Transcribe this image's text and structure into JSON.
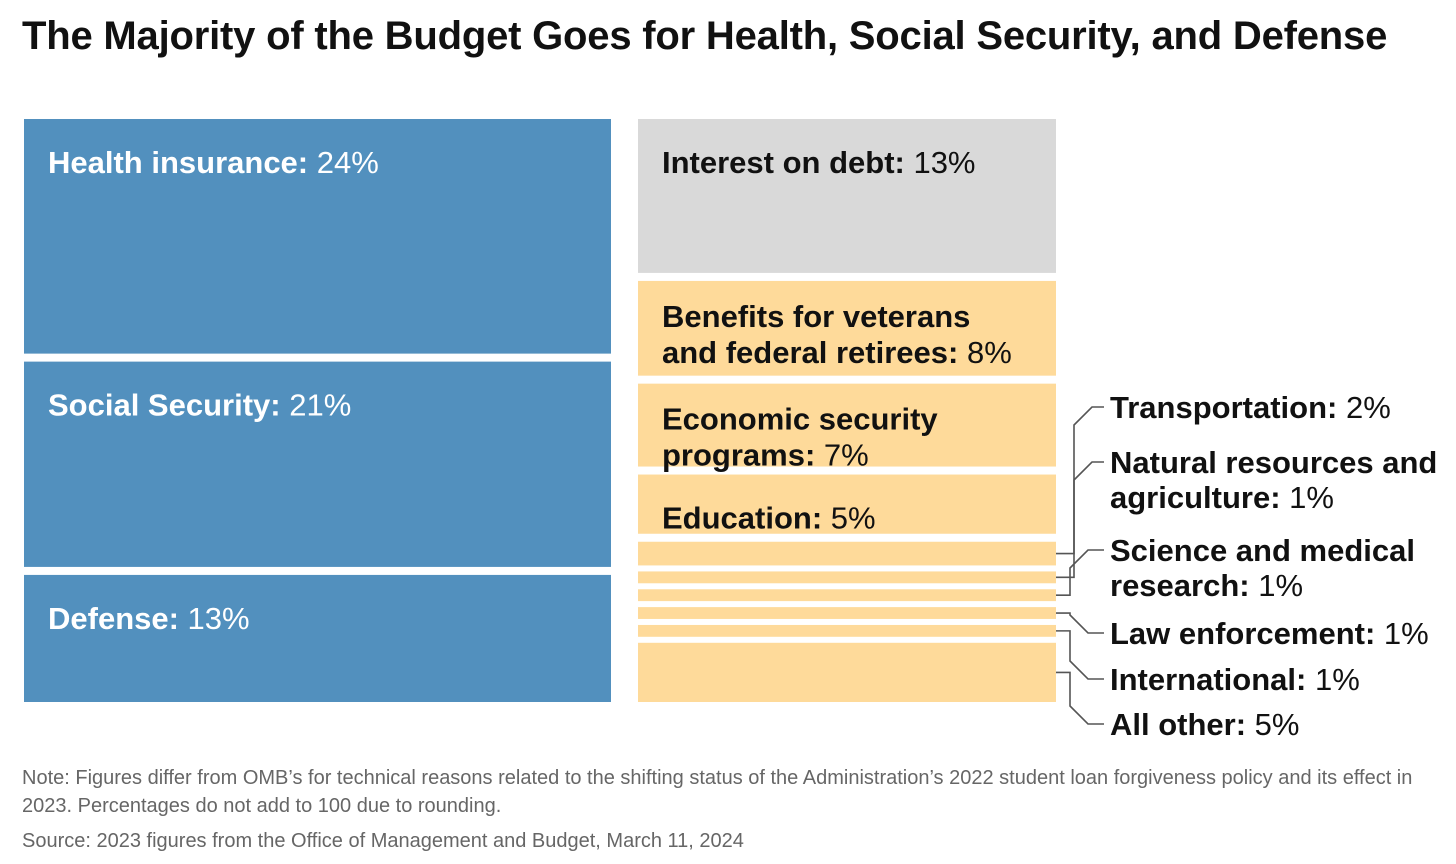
{
  "title": "The Majority of the Budget Goes for Health, Social Security, and Defense",
  "chart_data": {
    "type": "treemap",
    "title": "The Majority of the Budget Goes for Health, Social Security, and Defense",
    "unit": "% of 2023 federal budget",
    "colors": {
      "blue": "#5290BE",
      "gray": "#D9D9D9",
      "yellow": "#FEDA9A",
      "leader": "#555555"
    },
    "tiles": [
      {
        "label": "Health insurance:",
        "value": 24,
        "value_text": "24%",
        "group": "blue",
        "text_color": "#ffffff"
      },
      {
        "label": "Social Security:",
        "value": 21,
        "value_text": "21%",
        "group": "blue",
        "text_color": "#ffffff"
      },
      {
        "label": "Defense:",
        "value": 13,
        "value_text": "13%",
        "group": "blue",
        "text_color": "#ffffff"
      },
      {
        "label": "Interest on debt:",
        "value": 13,
        "value_text": "13%",
        "group": "gray",
        "text_color": "#111111"
      },
      {
        "label": "Benefits for veterans and federal retirees:",
        "value": 8,
        "value_text": "8%",
        "group": "yellow",
        "text_color": "#111111"
      },
      {
        "label": "Economic security programs:",
        "value": 7,
        "value_text": "7%",
        "group": "yellow",
        "text_color": "#111111"
      },
      {
        "label": "Education:",
        "value": 5,
        "value_text": "5%",
        "group": "yellow",
        "text_color": "#111111"
      }
    ],
    "callouts": [
      {
        "label": "Transportation:",
        "value": 2,
        "value_text": "2%"
      },
      {
        "label": "Natural resources and agriculture:",
        "value": 1,
        "value_text": "1%"
      },
      {
        "label": "Science and medical research:",
        "value": 1,
        "value_text": "1%"
      },
      {
        "label": "Law enforcement:",
        "value": 1,
        "value_text": "1%"
      },
      {
        "label": "International:",
        "value": 1,
        "value_text": "1%"
      },
      {
        "label": "All other:",
        "value": 5,
        "value_text": "5%"
      }
    ]
  },
  "note": "Note: Figures differ from OMB’s for technical reasons related to the shifting status of the Administration’s 2022 student loan forgiveness policy and its effect in 2023. Percentages do not add to 100 due to rounding.",
  "source": "Source: 2023 figures from the Office of Management and Budget, March 11, 2024"
}
